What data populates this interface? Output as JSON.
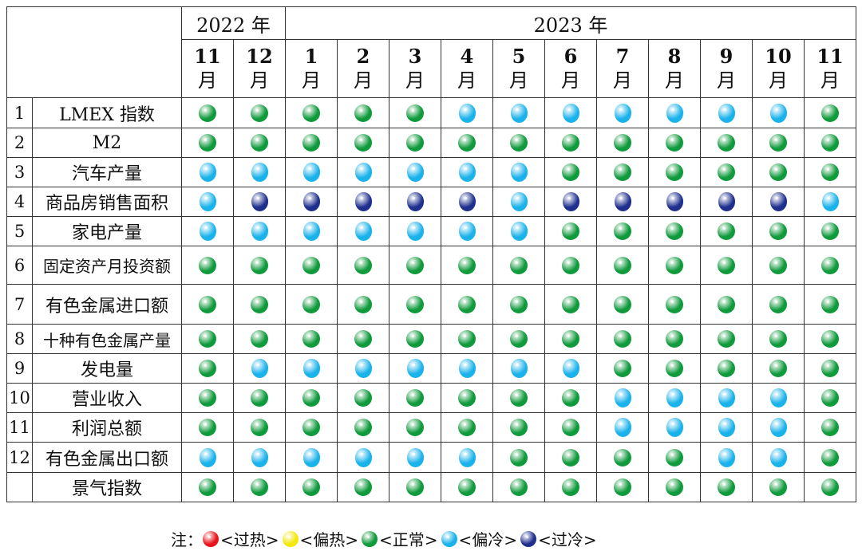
{
  "colors": {
    "overheat": "#e8141b",
    "warm": "#f4e70a",
    "normal": "#0f9a3c",
    "cool": "#1ab2ea",
    "overcool": "#1e2f8e"
  },
  "header": {
    "year_2022": "2022 年",
    "year_2023": "2023 年",
    "month_unit": "月",
    "months": [
      "11",
      "12",
      "1",
      "2",
      "3",
      "4",
      "5",
      "6",
      "7",
      "8",
      "9",
      "10",
      "11"
    ]
  },
  "rows": [
    {
      "num": "1",
      "name": "LMEX 指数",
      "status": [
        "normal",
        "normal",
        "normal",
        "normal",
        "normal",
        "cool",
        "cool",
        "cool",
        "cool",
        "cool",
        "cool",
        "cool",
        "normal"
      ]
    },
    {
      "num": "2",
      "name": "M2",
      "status": [
        "normal",
        "normal",
        "normal",
        "normal",
        "normal",
        "normal",
        "normal",
        "normal",
        "normal",
        "normal",
        "normal",
        "normal",
        "normal"
      ]
    },
    {
      "num": "3",
      "name": "汽车产量",
      "status": [
        "cool",
        "cool",
        "cool",
        "cool",
        "cool",
        "cool",
        "cool",
        "normal",
        "normal",
        "normal",
        "normal",
        "normal",
        "normal"
      ]
    },
    {
      "num": "4",
      "name": "商品房销售面积",
      "status": [
        "cool",
        "overcool",
        "overcool",
        "overcool",
        "overcool",
        "overcool",
        "cool",
        "overcool",
        "overcool",
        "overcool",
        "overcool",
        "overcool",
        "cool"
      ]
    },
    {
      "num": "5",
      "name": "家电产量",
      "status": [
        "cool",
        "cool",
        "cool",
        "cool",
        "cool",
        "cool",
        "cool",
        "normal",
        "normal",
        "normal",
        "normal",
        "normal",
        "normal"
      ]
    },
    {
      "num": "6",
      "name": "固定资产月投资额",
      "status": [
        "normal",
        "normal",
        "normal",
        "normal",
        "normal",
        "normal",
        "normal",
        "normal",
        "normal",
        "normal",
        "normal",
        "normal",
        "normal"
      ]
    },
    {
      "num": "7",
      "name": "有色金属进口额",
      "status": [
        "normal",
        "normal",
        "normal",
        "normal",
        "normal",
        "normal",
        "normal",
        "normal",
        "normal",
        "normal",
        "normal",
        "normal",
        "normal"
      ]
    },
    {
      "num": "8",
      "name": "十种有色金属产量",
      "status": [
        "normal",
        "normal",
        "normal",
        "normal",
        "normal",
        "normal",
        "normal",
        "normal",
        "normal",
        "normal",
        "normal",
        "normal",
        "normal"
      ]
    },
    {
      "num": "9",
      "name": "发电量",
      "status": [
        "normal",
        "cool",
        "cool",
        "cool",
        "cool",
        "cool",
        "cool",
        "cool",
        "normal",
        "normal",
        "normal",
        "normal",
        "normal"
      ]
    },
    {
      "num": "10",
      "name": "营业收入",
      "status": [
        "normal",
        "normal",
        "normal",
        "normal",
        "normal",
        "normal",
        "normal",
        "normal",
        "cool",
        "cool",
        "cool",
        "cool",
        "normal"
      ]
    },
    {
      "num": "11",
      "name": "利润总额",
      "status": [
        "normal",
        "normal",
        "normal",
        "normal",
        "normal",
        "normal",
        "normal",
        "normal",
        "cool",
        "cool",
        "cool",
        "cool",
        "normal"
      ]
    },
    {
      "num": "12",
      "name": "有色金属出口额",
      "status": [
        "cool",
        "cool",
        "cool",
        "cool",
        "cool",
        "cool",
        "normal",
        "normal",
        "normal",
        "normal",
        "cool",
        "cool",
        "normal"
      ]
    },
    {
      "num": "",
      "name": "景气指数",
      "status": [
        "normal",
        "normal",
        "normal",
        "normal",
        "normal",
        "normal",
        "normal",
        "normal",
        "normal",
        "normal",
        "normal",
        "normal",
        "normal"
      ]
    }
  ],
  "legend": {
    "prefix": "注：",
    "items": [
      {
        "key": "overheat",
        "label": "<过热>"
      },
      {
        "key": "warm",
        "label": "<偏热>"
      },
      {
        "key": "normal",
        "label": "<正常>"
      },
      {
        "key": "cool",
        "label": "<偏冷>"
      },
      {
        "key": "overcool",
        "label": "<过冷>"
      }
    ]
  }
}
